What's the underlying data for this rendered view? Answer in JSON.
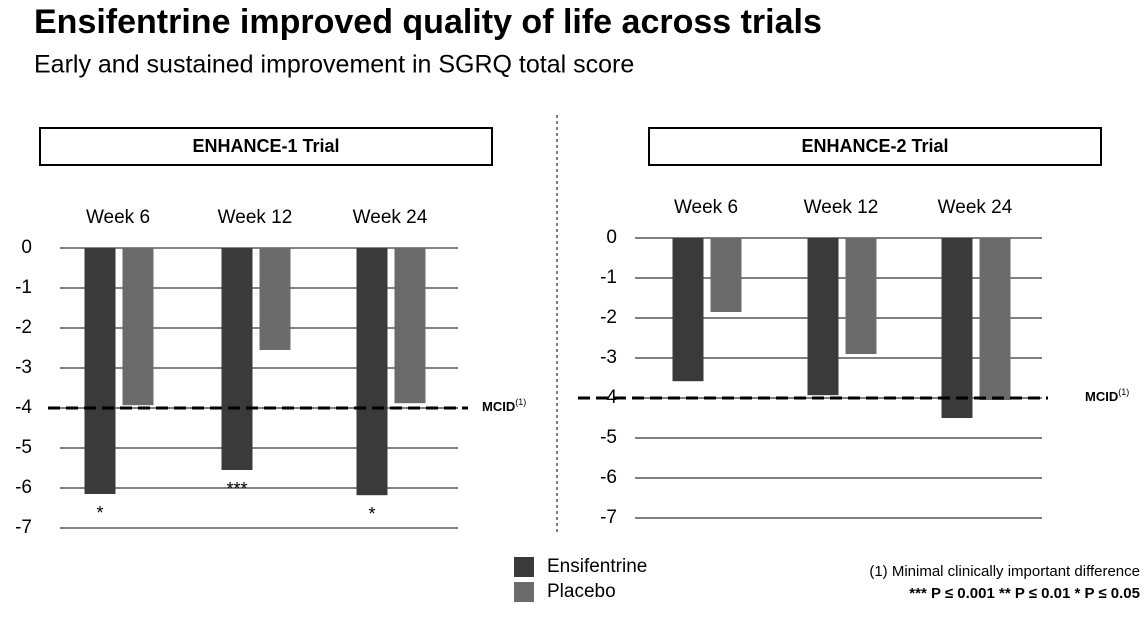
{
  "header": {
    "title": "Ensifentrine improved quality of life across trials",
    "subtitle": "Early and sustained improvement in SGRQ total score"
  },
  "chart_data": [
    {
      "type": "bar",
      "title": "ENHANCE-1 Trial",
      "categories": [
        "Week 6",
        "Week 12",
        "Week 24"
      ],
      "series": [
        {
          "name": "Ensifentrine",
          "color": "#3a3a3a",
          "values": [
            -6.15,
            -5.55,
            -6.18
          ]
        },
        {
          "name": "Placebo",
          "color": "#6b6b6b",
          "values": [
            -3.93,
            -2.55,
            -3.88
          ]
        }
      ],
      "annotations": [
        "*",
        "***",
        "*"
      ],
      "ylim": [
        -7,
        0
      ],
      "yticks": [
        0,
        -1,
        -2,
        -3,
        -4,
        -5,
        -6,
        -7
      ],
      "grid": true,
      "reference_line": {
        "value": -4,
        "label": "MCID",
        "note": "(1)"
      }
    },
    {
      "type": "bar",
      "title": "ENHANCE-2 Trial",
      "categories": [
        "Week 6",
        "Week 12",
        "Week 24"
      ],
      "series": [
        {
          "name": "Ensifentrine",
          "color": "#3a3a3a",
          "values": [
            -3.58,
            -3.93,
            -4.5
          ]
        },
        {
          "name": "Placebo",
          "color": "#6b6b6b",
          "values": [
            -1.85,
            -2.9,
            -4.05
          ]
        }
      ],
      "ylim": [
        -7,
        0
      ],
      "yticks": [
        0,
        -1,
        -2,
        -3,
        -4,
        -5,
        -6,
        -7
      ],
      "grid": true,
      "reference_line": {
        "value": -4,
        "label": "MCID",
        "note": "(1)"
      }
    }
  ],
  "footnotes": [
    "(1) Minimal clinically important difference",
    "***  P ≤ 0.001 ** P ≤ 0.01 * P ≤ 0.05"
  ]
}
